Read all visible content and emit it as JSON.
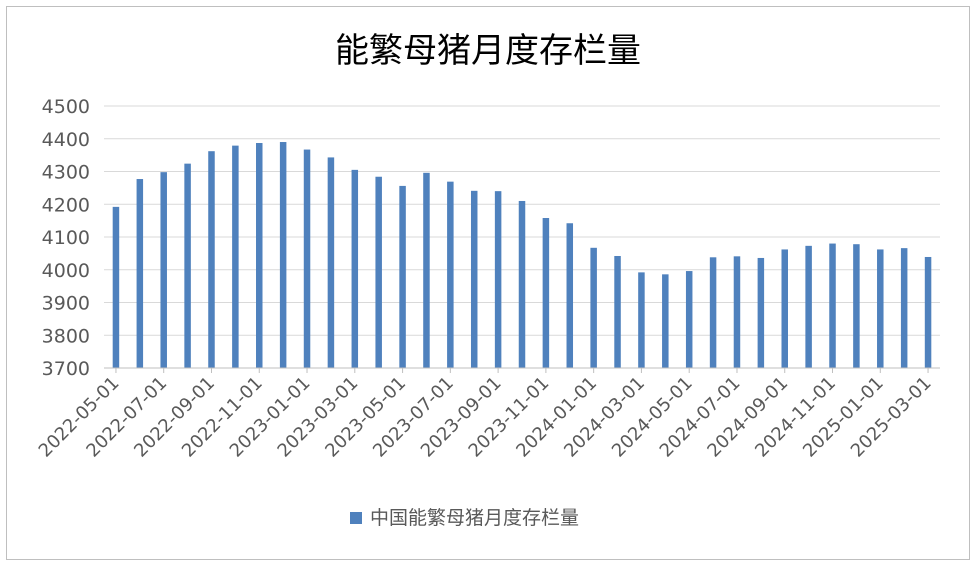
{
  "chart_data": {
    "type": "bar",
    "title": "能繁母猪月度存栏量",
    "xlabel": "",
    "ylabel": "",
    "ylim": [
      3700,
      4500
    ],
    "yticks": [
      3700,
      3800,
      3900,
      4000,
      4100,
      4200,
      4300,
      4400,
      4500
    ],
    "grid": true,
    "legend_position": "bottom",
    "colors": {
      "bar": "#4f81bd",
      "grid": "#d9d9d9",
      "text": "#595959",
      "title": "#000000"
    },
    "categories": [
      "2022-05-01",
      "2022-06-01",
      "2022-07-01",
      "2022-08-01",
      "2022-09-01",
      "2022-10-01",
      "2022-11-01",
      "2022-12-01",
      "2023-01-01",
      "2023-02-01",
      "2023-03-01",
      "2023-04-01",
      "2023-05-01",
      "2023-06-01",
      "2023-07-01",
      "2023-08-01",
      "2023-09-01",
      "2023-10-01",
      "2023-11-01",
      "2023-12-01",
      "2024-01-01",
      "2024-02-01",
      "2024-03-01",
      "2024-04-01",
      "2024-05-01",
      "2024-06-01",
      "2024-07-01",
      "2024-08-01",
      "2024-09-01",
      "2024-10-01",
      "2024-11-01",
      "2024-12-01",
      "2025-01-01",
      "2025-02-01",
      "2025-03-01"
    ],
    "tick_labels": [
      "2022-05-01",
      "2022-07-01",
      "2022-09-01",
      "2022-11-01",
      "2023-01-01",
      "2023-03-01",
      "2023-05-01",
      "2023-07-01",
      "2023-09-01",
      "2023-11-01",
      "2024-01-01",
      "2024-03-01",
      "2024-05-01",
      "2024-07-01",
      "2024-09-01",
      "2024-11-01",
      "2025-01-01",
      "2025-03-01"
    ],
    "series": [
      {
        "name": "中国能繁母猪月度存栏量",
        "values": [
          4192,
          4277,
          4298,
          4324,
          4362,
          4379,
          4387,
          4390,
          4367,
          4343,
          4305,
          4284,
          4256,
          4296,
          4269,
          4241,
          4240,
          4210,
          4158,
          4142,
          4067,
          4042,
          3992,
          3986,
          3996,
          4038,
          4041,
          4036,
          4062,
          4073,
          4080,
          4078,
          4062,
          4066,
          4039
        ]
      }
    ]
  }
}
